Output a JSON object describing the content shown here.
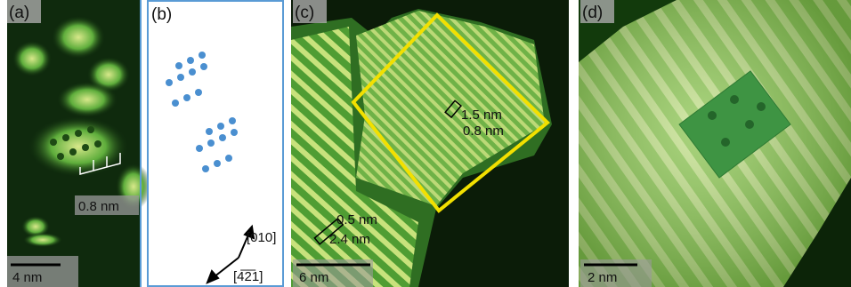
{
  "panels": [
    {
      "label": "(a)",
      "scale_bar": "4 nm",
      "annotations": [
        "0.8 nm"
      ]
    },
    {
      "label": "(b)",
      "directions": [
        "[010]",
        "[4̅2̅1]"
      ]
    },
    {
      "label": "(c)",
      "scale_bar": "6 nm",
      "annotations": [
        "1.5 nm",
        "0.8 nm",
        "0.5 nm",
        "2.4 nm"
      ]
    },
    {
      "label": "(d)",
      "scale_bar": "2 nm"
    }
  ]
}
